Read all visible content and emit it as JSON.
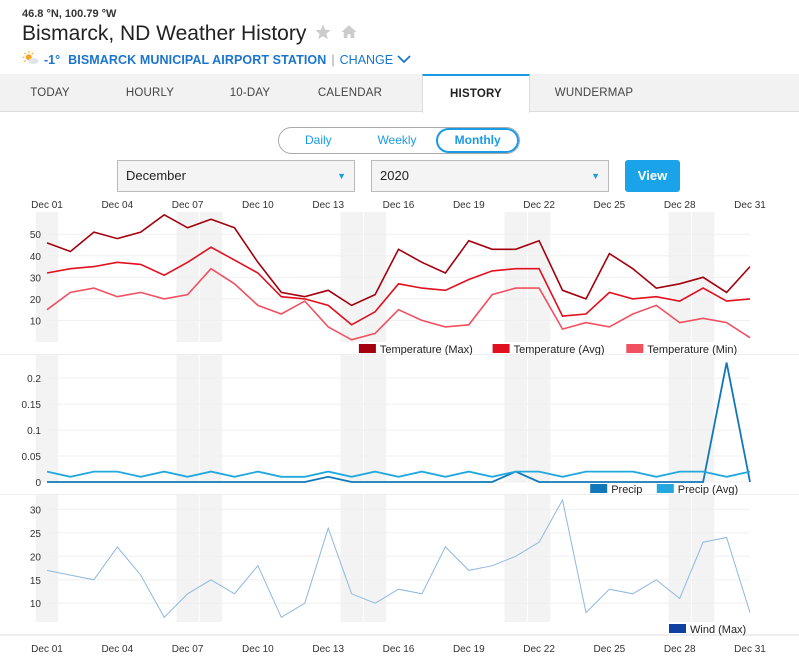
{
  "header": {
    "coords": "46.8 °N, 100.79 °W",
    "title": "Bismarck, ND Weather History",
    "current_temp": "-1°",
    "station": "BISMARCK MUNICIPAL AIRPORT STATION",
    "change_label": "CHANGE"
  },
  "tabs": [
    {
      "label": "TODAY"
    },
    {
      "label": "HOURLY"
    },
    {
      "label": "10-DAY"
    },
    {
      "label": "CALENDAR"
    },
    {
      "label": "HISTORY"
    },
    {
      "label": "WUNDERMAP"
    }
  ],
  "active_tab": 4,
  "segment": {
    "items": [
      "Daily",
      "Weekly",
      "Monthly"
    ],
    "active": 2
  },
  "controls": {
    "month": "December",
    "year": "2020",
    "view_label": "View"
  },
  "colors": {
    "temp_max": "#a3000f",
    "temp_avg": "#e0101e",
    "temp_min": "#f05060",
    "precip": "#1078b8",
    "precip_avg": "#22a8dc",
    "wind": "#8fb8e0",
    "wind_legend": "#1040a0"
  },
  "chart_data": [
    {
      "type": "line",
      "x_tick_labels": [
        "Dec 01",
        "Dec 04",
        "Dec 07",
        "Dec 10",
        "Dec 13",
        "Dec 16",
        "Dec 19",
        "Dec 22",
        "Dec 25",
        "Dec 28",
        "Dec 31"
      ],
      "x": [
        1,
        2,
        3,
        4,
        5,
        6,
        7,
        8,
        9,
        10,
        11,
        12,
        13,
        14,
        15,
        16,
        17,
        18,
        19,
        20,
        21,
        22,
        23,
        24,
        25,
        26,
        27,
        28,
        29,
        30,
        31
      ],
      "y_ticks": [
        10,
        20,
        30,
        40,
        50
      ],
      "ylim": [
        0,
        58
      ],
      "series": [
        {
          "name": "Temperature (Max)",
          "values": [
            46,
            42,
            51,
            48,
            51,
            59,
            53,
            57,
            53,
            37,
            23,
            21,
            24,
            17,
            22,
            43,
            37,
            32,
            47,
            43,
            43,
            47,
            24,
            20,
            41,
            34,
            25,
            27,
            30,
            23,
            35
          ]
        },
        {
          "name": "Temperature (Avg)",
          "values": [
            32,
            34,
            35,
            37,
            36,
            31,
            37,
            44,
            38,
            32,
            21,
            20,
            17,
            8,
            14,
            27,
            25,
            24,
            29,
            33,
            34,
            34,
            12,
            13,
            23,
            20,
            21,
            19,
            25,
            19,
            20
          ]
        },
        {
          "name": "Temperature (Min)",
          "values": [
            15,
            23,
            25,
            21,
            23,
            20,
            22,
            34,
            27,
            17,
            13,
            19,
            7,
            1,
            4,
            15,
            10,
            7,
            8,
            22,
            25,
            25,
            6,
            9,
            7,
            13,
            17,
            9,
            11,
            9,
            2
          ]
        }
      ]
    },
    {
      "type": "line",
      "x_tick_labels": [
        "Dec 01",
        "Dec 04",
        "Dec 07",
        "Dec 10",
        "Dec 13",
        "Dec 16",
        "Dec 19",
        "Dec 22",
        "Dec 25",
        "Dec 28",
        "Dec 31"
      ],
      "x": [
        1,
        2,
        3,
        4,
        5,
        6,
        7,
        8,
        9,
        10,
        11,
        12,
        13,
        14,
        15,
        16,
        17,
        18,
        19,
        20,
        21,
        22,
        23,
        24,
        25,
        26,
        27,
        28,
        29,
        30,
        31
      ],
      "y_ticks": [
        0,
        0.05,
        0.1,
        0.15,
        0.2
      ],
      "ylim": [
        0,
        0.235
      ],
      "series": [
        {
          "name": "Precip",
          "values": [
            0,
            0,
            0,
            0,
            0,
            0,
            0,
            0,
            0,
            0,
            0,
            0,
            0.01,
            0,
            0,
            0,
            0,
            0,
            0,
            0,
            0.02,
            0,
            0,
            0,
            0,
            0,
            0,
            0,
            0,
            0.23,
            0
          ]
        },
        {
          "name": "Precip (Avg)",
          "values": [
            0.02,
            0.01,
            0.02,
            0.02,
            0.01,
            0.02,
            0.01,
            0.02,
            0.01,
            0.02,
            0.01,
            0.01,
            0.02,
            0.01,
            0.02,
            0.01,
            0.02,
            0.01,
            0.02,
            0.01,
            0.02,
            0.02,
            0.01,
            0.02,
            0.02,
            0.02,
            0.01,
            0.02,
            0.02,
            0.01,
            0.02
          ]
        }
      ]
    },
    {
      "type": "line",
      "x_tick_labels": [
        "Dec 01",
        "Dec 04",
        "Dec 07",
        "Dec 10",
        "Dec 13",
        "Dec 16",
        "Dec 19",
        "Dec 22",
        "Dec 25",
        "Dec 28",
        "Dec 31"
      ],
      "x": [
        1,
        2,
        3,
        4,
        5,
        6,
        7,
        8,
        9,
        10,
        11,
        12,
        13,
        14,
        15,
        16,
        17,
        18,
        19,
        20,
        21,
        22,
        23,
        24,
        25,
        26,
        27,
        28,
        29,
        30,
        31
      ],
      "y_ticks": [
        10,
        15,
        20,
        25,
        30
      ],
      "ylim": [
        6,
        32
      ],
      "series": [
        {
          "name": "Wind (Max)",
          "values": [
            17,
            16,
            15,
            22,
            16,
            7,
            12,
            15,
            12,
            18,
            7,
            10,
            26,
            12,
            10,
            13,
            12,
            22,
            17,
            18,
            20,
            23,
            32,
            8,
            13,
            12,
            15,
            11,
            23,
            24,
            8
          ]
        }
      ]
    }
  ]
}
